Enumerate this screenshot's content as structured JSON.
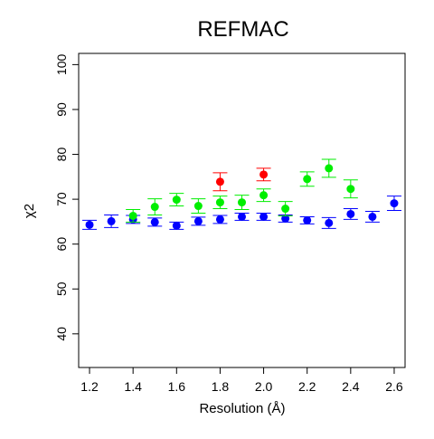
{
  "chart_data": {
    "type": "scatter",
    "title": "REFMAC",
    "xlabel": "Resolution (Å)",
    "ylabel": "χ2",
    "xlim": [
      1.15,
      2.65
    ],
    "ylim": [
      32.5,
      102.5
    ],
    "x_ticks": [
      "1.2",
      "1.4",
      "1.6",
      "1.8",
      "2.0",
      "2.2",
      "2.4",
      "2.6"
    ],
    "y_ticks": [
      "40",
      "50",
      "60",
      "70",
      "80",
      "90",
      "100"
    ],
    "grid": false,
    "legend": "none",
    "series": [
      {
        "color": "#0000ff",
        "points": [
          {
            "x": 1.2,
            "y": 64.3,
            "lo": 63.3,
            "hi": 65.3
          },
          {
            "x": 1.3,
            "y": 65.1,
            "lo": 63.7,
            "hi": 66.5
          },
          {
            "x": 1.4,
            "y": 65.5,
            "lo": 64.6,
            "hi": 66.4
          },
          {
            "x": 1.5,
            "y": 64.9,
            "lo": 64.0,
            "hi": 65.8
          },
          {
            "x": 1.6,
            "y": 64.1,
            "lo": 63.3,
            "hi": 64.9
          },
          {
            "x": 1.7,
            "y": 65.1,
            "lo": 64.2,
            "hi": 66.0
          },
          {
            "x": 1.8,
            "y": 65.5,
            "lo": 64.6,
            "hi": 66.4
          },
          {
            "x": 1.9,
            "y": 66.1,
            "lo": 65.3,
            "hi": 66.9
          },
          {
            "x": 2.0,
            "y": 66.1,
            "lo": 65.3,
            "hi": 66.9
          },
          {
            "x": 2.1,
            "y": 65.7,
            "lo": 64.9,
            "hi": 66.5
          },
          {
            "x": 2.2,
            "y": 65.3,
            "lo": 64.5,
            "hi": 66.1
          },
          {
            "x": 2.3,
            "y": 64.7,
            "lo": 63.5,
            "hi": 65.9
          },
          {
            "x": 2.4,
            "y": 66.7,
            "lo": 65.5,
            "hi": 67.9
          },
          {
            "x": 2.5,
            "y": 66.1,
            "lo": 64.9,
            "hi": 67.3
          },
          {
            "x": 2.6,
            "y": 69.1,
            "lo": 67.5,
            "hi": 70.7
          }
        ]
      },
      {
        "color": "#00ee00",
        "points": [
          {
            "x": 1.4,
            "y": 66.3,
            "lo": 64.9,
            "hi": 67.7
          },
          {
            "x": 1.5,
            "y": 68.3,
            "lo": 66.5,
            "hi": 70.1
          },
          {
            "x": 1.6,
            "y": 69.9,
            "lo": 68.5,
            "hi": 71.3
          },
          {
            "x": 1.7,
            "y": 68.5,
            "lo": 66.9,
            "hi": 70.1
          },
          {
            "x": 1.8,
            "y": 69.3,
            "lo": 67.9,
            "hi": 70.7
          },
          {
            "x": 1.9,
            "y": 69.3,
            "lo": 67.7,
            "hi": 70.9
          },
          {
            "x": 2.0,
            "y": 70.9,
            "lo": 69.5,
            "hi": 72.3
          },
          {
            "x": 2.1,
            "y": 67.9,
            "lo": 66.3,
            "hi": 69.5
          },
          {
            "x": 2.2,
            "y": 74.5,
            "lo": 72.9,
            "hi": 76.1
          },
          {
            "x": 2.3,
            "y": 76.9,
            "lo": 74.9,
            "hi": 78.9
          },
          {
            "x": 2.4,
            "y": 72.3,
            "lo": 70.3,
            "hi": 74.3
          }
        ]
      },
      {
        "color": "#ff0000",
        "points": [
          {
            "x": 1.8,
            "y": 73.9,
            "lo": 71.9,
            "hi": 75.9
          },
          {
            "x": 2.0,
            "y": 75.5,
            "lo": 74.1,
            "hi": 76.9
          }
        ]
      }
    ]
  }
}
